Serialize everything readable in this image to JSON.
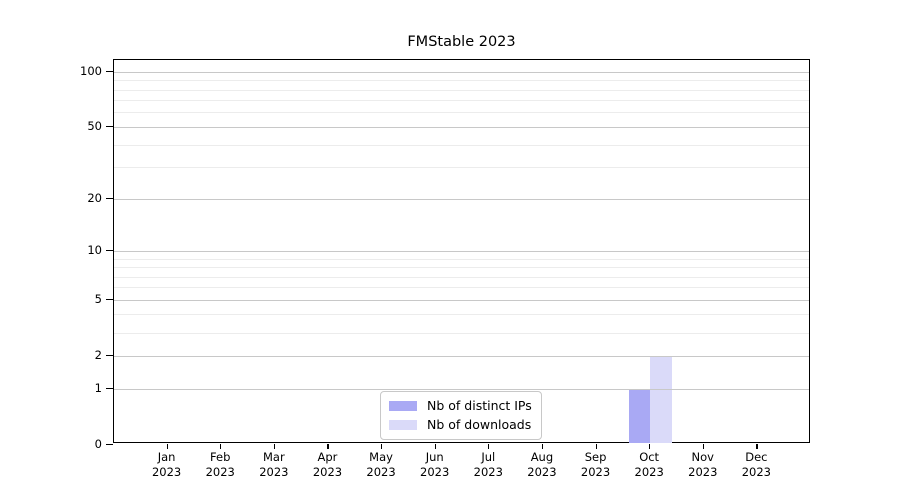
{
  "chart_data": {
    "type": "bar",
    "title": "FMStable 2023",
    "categories": [
      "Jan 2023",
      "Feb 2023",
      "Mar 2023",
      "Apr 2023",
      "May 2023",
      "Jun 2023",
      "Jul 2023",
      "Aug 2023",
      "Sep 2023",
      "Oct 2023",
      "Nov 2023",
      "Dec 2023"
    ],
    "series": [
      {
        "name": "Nb of distinct IPs",
        "color": "#a9a9f4",
        "values": [
          0,
          0,
          0,
          0,
          0,
          0,
          0,
          0,
          0,
          1,
          0,
          0
        ]
      },
      {
        "name": "Nb of downloads",
        "color": "#dadaf9",
        "values": [
          0,
          0,
          0,
          0,
          0,
          0,
          0,
          0,
          0,
          2,
          0,
          0
        ]
      }
    ],
    "xlabel": "",
    "ylabel": "",
    "yscale": "log1p",
    "ylim": [
      0,
      115
    ],
    "yticks": [
      0,
      1,
      2,
      5,
      10,
      20,
      50,
      100
    ],
    "yticks_minor": [
      3,
      4,
      6,
      7,
      8,
      9,
      30,
      40,
      60,
      70,
      80,
      90
    ],
    "grid": "horizontal",
    "legend_position": "inside lower-center",
    "colors": {
      "grid_major": "#c8c8c8",
      "grid_minor": "#ececec",
      "axis": "#000000",
      "background": "#ffffff"
    }
  }
}
